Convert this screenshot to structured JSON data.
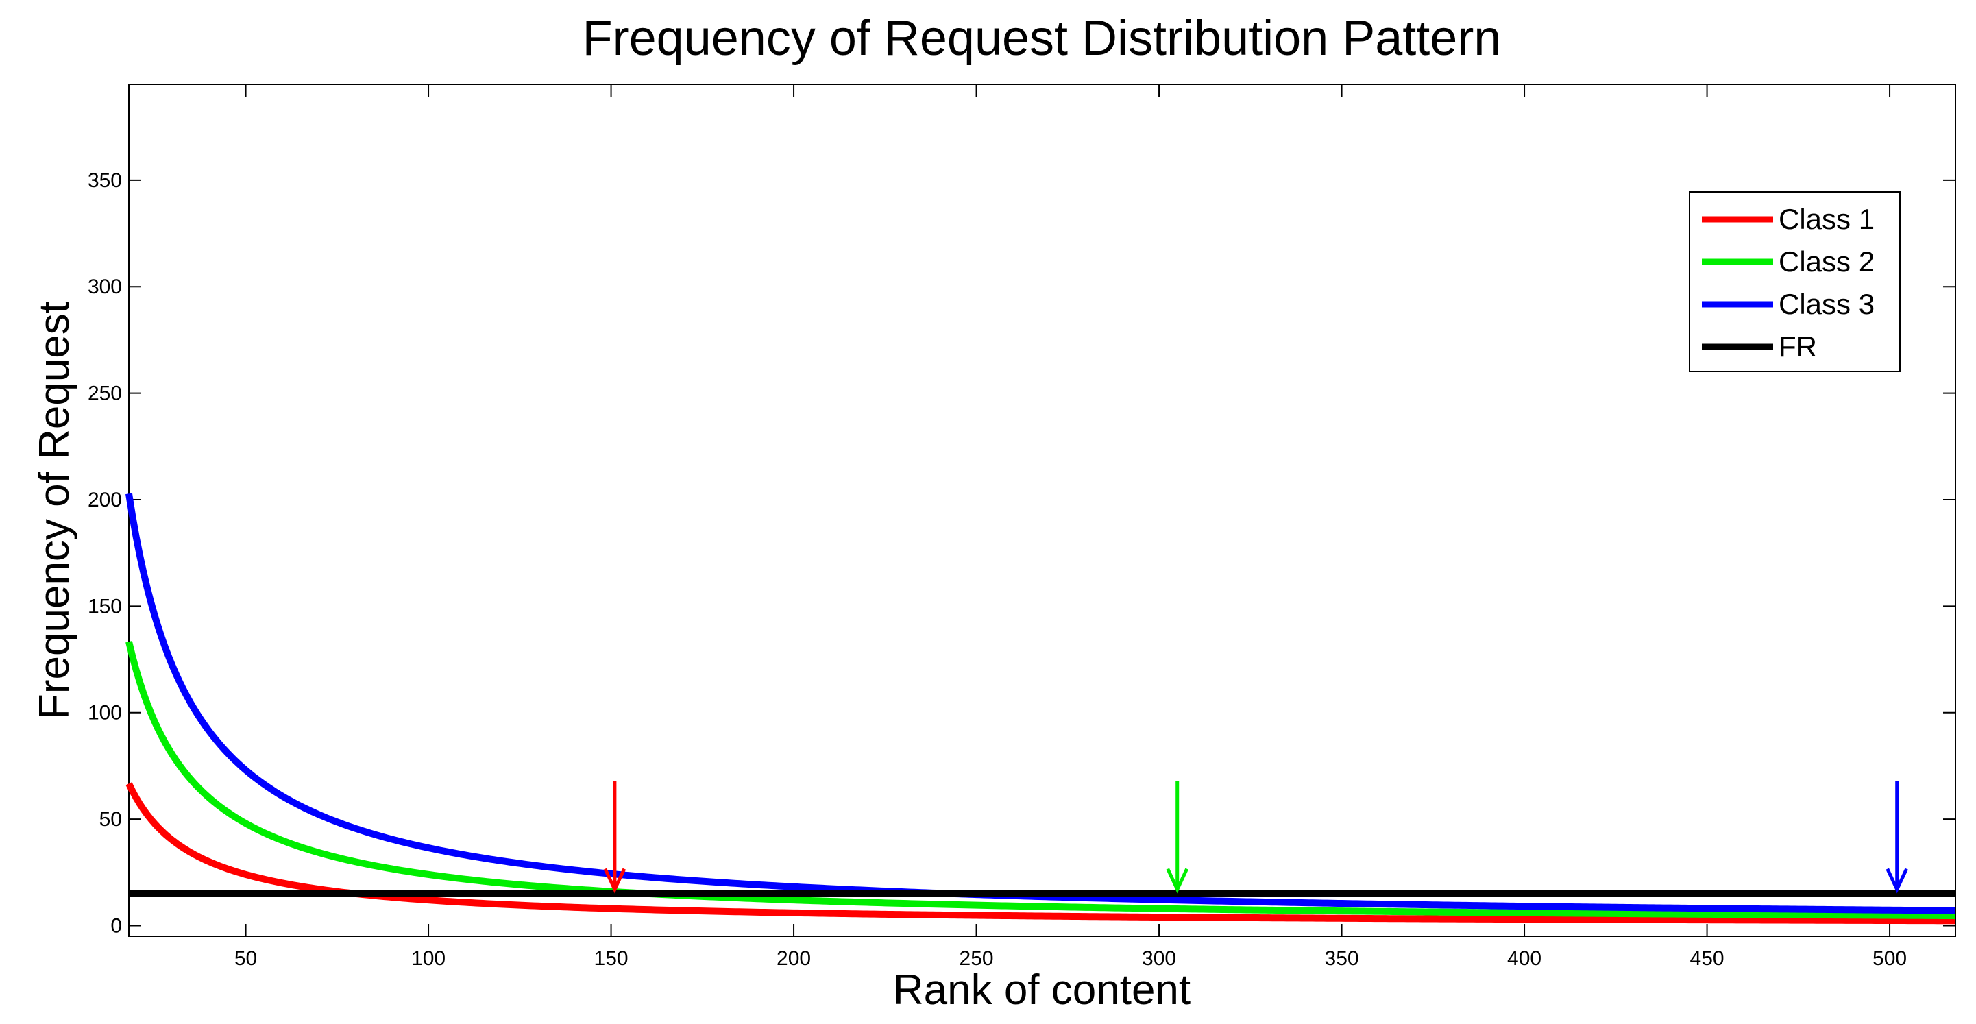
{
  "chart_data": {
    "type": "line",
    "title": "Frequency of Request Distribution Pattern",
    "xlabel": "Rank of content",
    "ylabel": "Frequency of Request",
    "xlim": [
      18,
      518
    ],
    "ylim": [
      -5,
      395
    ],
    "xticks": [
      50,
      100,
      150,
      200,
      250,
      300,
      350,
      400,
      450,
      500
    ],
    "yticks": [
      0,
      50,
      100,
      150,
      200,
      250,
      300,
      350
    ],
    "grid": false,
    "legend_position": "top-right",
    "series": [
      {
        "name": "Class 1",
        "color": "#ff0000",
        "model": "k/rank",
        "k": 1200,
        "sample_x": [
          18,
          50,
          100,
          150,
          200,
          300,
          400,
          518
        ],
        "sample_y": [
          66.7,
          24,
          12,
          8,
          6,
          4,
          3,
          2.3
        ]
      },
      {
        "name": "Class 2",
        "color": "#00ee00",
        "model": "k/rank",
        "k": 2400,
        "sample_x": [
          18,
          50,
          100,
          150,
          200,
          300,
          400,
          518
        ],
        "sample_y": [
          133.3,
          48,
          24,
          16,
          12,
          8,
          6,
          4.6
        ]
      },
      {
        "name": "Class 3",
        "color": "#0000ff",
        "model": "k/rank",
        "k": 3650,
        "sample_x": [
          18,
          50,
          100,
          150,
          200,
          300,
          400,
          518
        ],
        "sample_y": [
          202.8,
          73,
          36.5,
          24.3,
          18.3,
          12.2,
          9.1,
          7
        ]
      },
      {
        "name": "FR",
        "color": "#000000",
        "model": "constant",
        "k": 15,
        "sample_x": [
          18,
          518
        ],
        "sample_y": [
          15,
          15
        ]
      }
    ],
    "annotations": [
      {
        "type": "arrow",
        "x": 151,
        "y_from": 68,
        "y_to": 17,
        "color": "#ff0000"
      },
      {
        "type": "arrow",
        "x": 305,
        "y_from": 68,
        "y_to": 17,
        "color": "#00ee00"
      },
      {
        "type": "arrow",
        "x": 502,
        "y_from": 68,
        "y_to": 17,
        "color": "#0000ff"
      }
    ]
  }
}
